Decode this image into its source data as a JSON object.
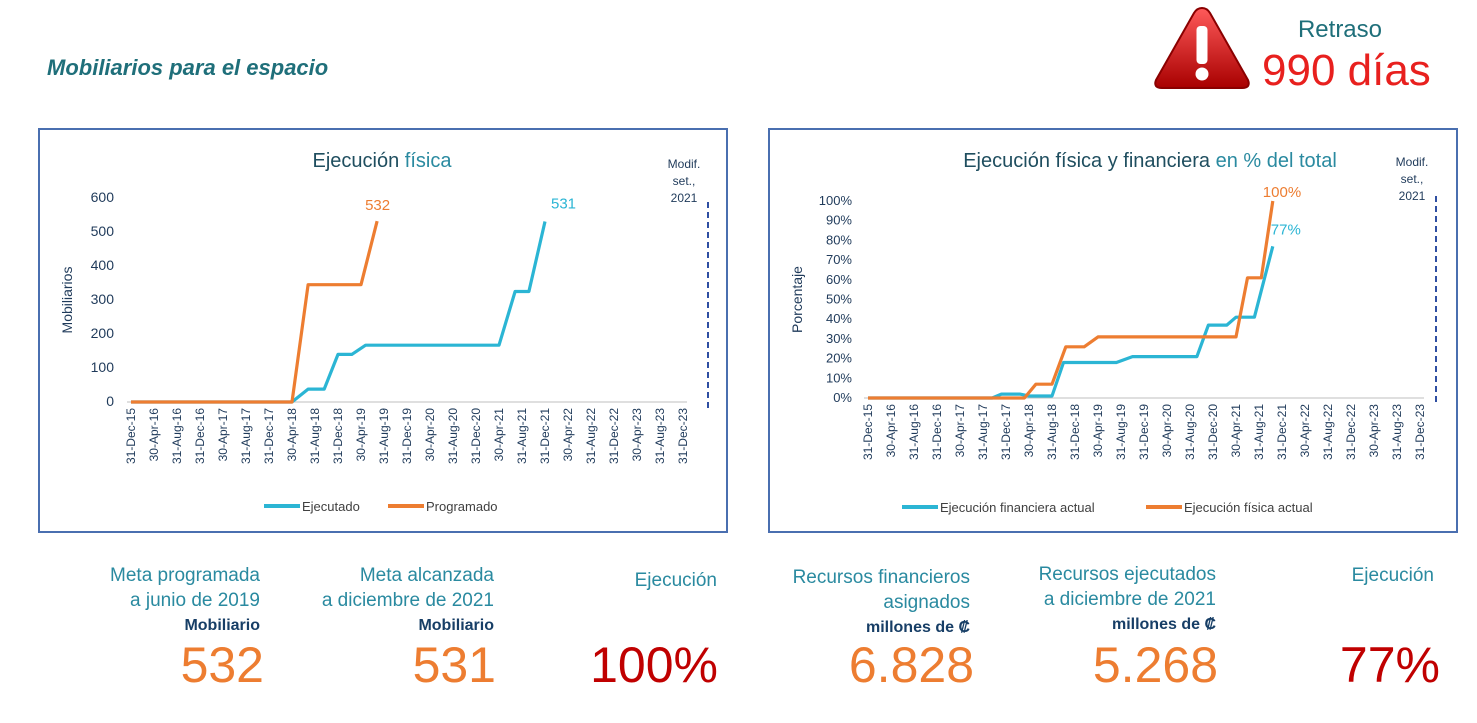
{
  "page_title": "Mobiliarios para el espacio",
  "delay": {
    "label": "Retraso",
    "value": "990 días"
  },
  "icons": {
    "alert": "warning-triangle-icon"
  },
  "colors": {
    "ejecutado": "#2bb5d4",
    "programado": "#ed7d31",
    "dash": "#2f4fa2",
    "axis_text": "#1f3a5a"
  },
  "x_categories": [
    "31-Dec-15",
    "30-Apr-16",
    "31-Aug-16",
    "31-Dec-16",
    "30-Apr-17",
    "31-Aug-17",
    "31-Dec-17",
    "30-Apr-18",
    "31-Aug-18",
    "31-Dec-18",
    "30-Apr-19",
    "31-Aug-19",
    "31-Dec-19",
    "30-Apr-20",
    "31-Aug-20",
    "31-Dec-20",
    "30-Apr-21",
    "31-Aug-21",
    "31-Dec-21",
    "30-Apr-22",
    "31-Aug-22",
    "31-Dec-22",
    "30-Apr-23",
    "31-Aug-23",
    "31-Dec-23"
  ],
  "chart_data": [
    {
      "type": "line",
      "title_main": "Ejecución",
      "title_rest": " física",
      "ylabel": "Mobiliarios",
      "ylim": [
        0,
        600
      ],
      "yticks": [
        "0",
        "100",
        "200",
        "300",
        "400",
        "500",
        "600"
      ],
      "annotation": [
        "Modif.",
        "set.,",
        "2021"
      ],
      "series": [
        {
          "name": "Ejecutado",
          "end_label": "531",
          "points": [
            [
              0,
              0
            ],
            [
              7,
              0
            ],
            [
              7.7,
              38
            ],
            [
              8.4,
              38
            ],
            [
              9.0,
              140
            ],
            [
              9.6,
              140
            ],
            [
              10.2,
              167
            ],
            [
              16.0,
              167
            ],
            [
              16.7,
              325
            ],
            [
              17.3,
              325
            ],
            [
              18.0,
              531
            ]
          ]
        },
        {
          "name": "Programado",
          "end_label": "532",
          "points": [
            [
              0,
              0
            ],
            [
              7,
              0
            ],
            [
              7.7,
              345
            ],
            [
              10.0,
              345
            ],
            [
              10.7,
              532
            ]
          ]
        }
      ]
    },
    {
      "type": "line",
      "title_main": "Ejecución física y financiera",
      "title_rest": " en % del total",
      "ylabel": "Porcentaje",
      "ylim": [
        0,
        100
      ],
      "yticks": [
        "0%",
        "10%",
        "20%",
        "30%",
        "40%",
        "50%",
        "60%",
        "70%",
        "80%",
        "90%",
        "100%"
      ],
      "annotation": [
        "Modif.",
        "set.,",
        "2021"
      ],
      "series": [
        {
          "name": "Ejecución financiera actual",
          "end_label": "77%",
          "points": [
            [
              0,
              0
            ],
            [
              5.4,
              0
            ],
            [
              5.8,
              2
            ],
            [
              6.6,
              2
            ],
            [
              7.0,
              1
            ],
            [
              8.0,
              1
            ],
            [
              8.5,
              18
            ],
            [
              10.8,
              18
            ],
            [
              11.5,
              21
            ],
            [
              14.3,
              21
            ],
            [
              14.8,
              37
            ],
            [
              15.6,
              37
            ],
            [
              16.0,
              41
            ],
            [
              16.8,
              41
            ],
            [
              17.6,
              77
            ]
          ]
        },
        {
          "name": "Ejecución física actual",
          "end_label": "100%",
          "points": [
            [
              0,
              0
            ],
            [
              6.8,
              0
            ],
            [
              7.3,
              7
            ],
            [
              8.0,
              7
            ],
            [
              8.6,
              26
            ],
            [
              9.4,
              26
            ],
            [
              10.0,
              31
            ],
            [
              16.0,
              31
            ],
            [
              16.5,
              61
            ],
            [
              17.1,
              61
            ],
            [
              17.6,
              100
            ]
          ]
        }
      ]
    }
  ],
  "stats": {
    "meta_programada": {
      "line1": "Meta programada",
      "line2": "a junio de 2019",
      "unit": "Mobiliario",
      "value": "532"
    },
    "meta_alcanzada": {
      "line1": "Meta alcanzada",
      "line2": "a diciembre de 2021",
      "unit": "Mobiliario",
      "value": "531"
    },
    "ejecucion_fisica": {
      "label": "Ejecución",
      "value": "100%"
    },
    "recursos_asignados": {
      "line1": "Recursos financieros",
      "line2": "asignados",
      "unit": "millones de ₡",
      "value": "6.828"
    },
    "recursos_ejecutados": {
      "line1": "Recursos ejecutados",
      "line2": "a diciembre de 2021",
      "unit": "millones de ₡",
      "value": "5.268"
    },
    "ejecucion_financiera": {
      "label": "Ejecución",
      "value": "77%"
    }
  }
}
